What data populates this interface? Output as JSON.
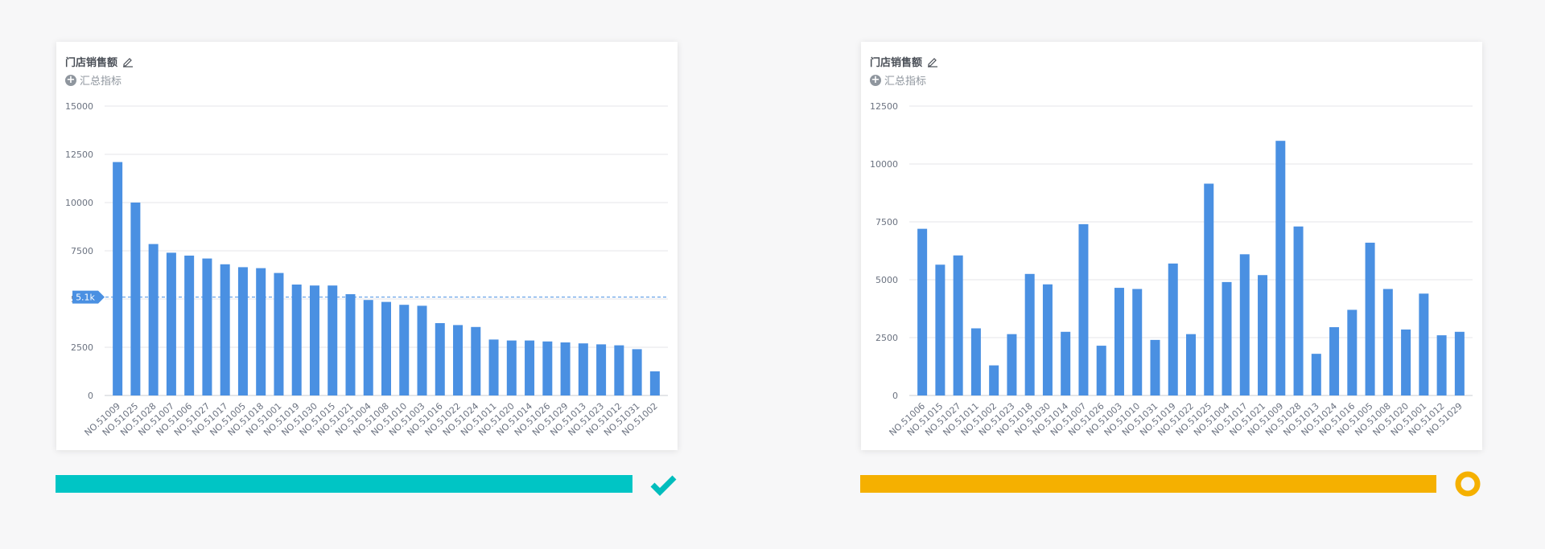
{
  "panels": [
    {
      "title": "门店销售额",
      "add_metric": "汇总指标",
      "status": "complete",
      "status_color": "#f0b400",
      "progress_color": "#00c5c5",
      "check_color": "#00bdbd"
    },
    {
      "title": "门店销售额",
      "add_metric": "汇总指标",
      "status": "pending",
      "progress_color": "#f5b000",
      "circle_color": "#f5b000"
    }
  ],
  "chart_data": [
    {
      "type": "bar",
      "sorted": "descending",
      "ylim": [
        0,
        15000
      ],
      "yticks": [
        "0",
        "2500",
        "5000",
        "7500",
        "10000",
        "12500",
        "15000"
      ],
      "reference_line": {
        "value": 5100,
        "label": "5.1k"
      },
      "categories": [
        "NO.51009",
        "NO.51025",
        "NO.51028",
        "NO.51007",
        "NO.51006",
        "NO.51027",
        "NO.51017",
        "NO.51005",
        "NO.51018",
        "NO.51001",
        "NO.51019",
        "NO.51030",
        "NO.51015",
        "NO.51021",
        "NO.51004",
        "NO.51008",
        "NO.51010",
        "NO.51003",
        "NO.51016",
        "NO.51022",
        "NO.51024",
        "NO.51011",
        "NO.51020",
        "NO.51014",
        "NO.51026",
        "NO.51029",
        "NO.51013",
        "NO.51023",
        "NO.51012",
        "NO.51031",
        "NO.51002"
      ],
      "values": [
        12100,
        10000,
        7850,
        7400,
        7250,
        7100,
        6800,
        6650,
        6600,
        6350,
        5750,
        5700,
        5700,
        5250,
        4950,
        4850,
        4700,
        4650,
        3750,
        3650,
        3550,
        2900,
        2850,
        2850,
        2800,
        2750,
        2700,
        2650,
        2600,
        2400,
        1250
      ],
      "bar_color": "#4a90e2"
    },
    {
      "type": "bar",
      "ylim": [
        0,
        12500
      ],
      "yticks": [
        "0",
        "2500",
        "5000",
        "7500",
        "10000",
        "12500"
      ],
      "categories": [
        "NO.51006",
        "NO.51015",
        "NO.51027",
        "NO.51011",
        "NO.51002",
        "NO.51023",
        "NO.51018",
        "NO.51030",
        "NO.51014",
        "NO.51007",
        "NO.51026",
        "NO.51003",
        "NO.51010",
        "NO.51031",
        "NO.51019",
        "NO.51022",
        "NO.51025",
        "NO.51004",
        "NO.51017",
        "NO.51021",
        "NO.51009",
        "NO.51028",
        "NO.51013",
        "NO.51024",
        "NO.51016",
        "NO.51005",
        "NO.51008",
        "NO.51020",
        "NO.51001",
        "NO.51012",
        "NO.51029"
      ],
      "values": [
        7200,
        5650,
        6050,
        2900,
        1300,
        2650,
        5250,
        4800,
        2750,
        7400,
        2150,
        4650,
        4600,
        2400,
        5700,
        2650,
        9150,
        4900,
        6100,
        5200,
        11000,
        7300,
        1800,
        2950,
        3700,
        6600,
        4600,
        2850,
        4400,
        2600,
        2750
      ],
      "bar_color": "#4a90e2"
    }
  ]
}
